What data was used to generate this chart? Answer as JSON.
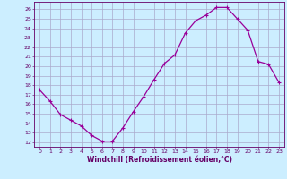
{
  "x": [
    0,
    1,
    2,
    3,
    4,
    5,
    6,
    7,
    8,
    9,
    10,
    11,
    12,
    13,
    14,
    15,
    16,
    17,
    18,
    19,
    20,
    21,
    22,
    23
  ],
  "y": [
    17.5,
    16.3,
    14.9,
    14.3,
    13.7,
    12.7,
    12.1,
    12.1,
    13.5,
    15.2,
    16.8,
    18.6,
    20.3,
    21.2,
    23.5,
    24.8,
    25.4,
    26.2,
    26.2,
    25.0,
    23.8,
    20.5,
    20.2,
    18.3
  ],
  "line_color": "#990099",
  "marker": "+",
  "marker_size": 3,
  "marker_lw": 0.8,
  "bg_color": "#cceeff",
  "grid_color": "#aaaacc",
  "xlabel": "Windchill (Refroidissement éolien,°C)",
  "yticks": [
    12,
    13,
    14,
    15,
    16,
    17,
    18,
    19,
    20,
    21,
    22,
    23,
    24,
    25,
    26
  ],
  "ylim": [
    11.5,
    26.8
  ],
  "xlim": [
    -0.5,
    23.5
  ],
  "xticks": [
    0,
    1,
    2,
    3,
    4,
    5,
    6,
    7,
    8,
    9,
    10,
    11,
    12,
    13,
    14,
    15,
    16,
    17,
    18,
    19,
    20,
    21,
    22,
    23
  ],
  "tick_fontsize": 4.5,
  "xlabel_fontsize": 5.5,
  "tick_color": "#660066",
  "spine_color": "#660066",
  "axis_label_color": "#660066",
  "line_width": 0.9
}
